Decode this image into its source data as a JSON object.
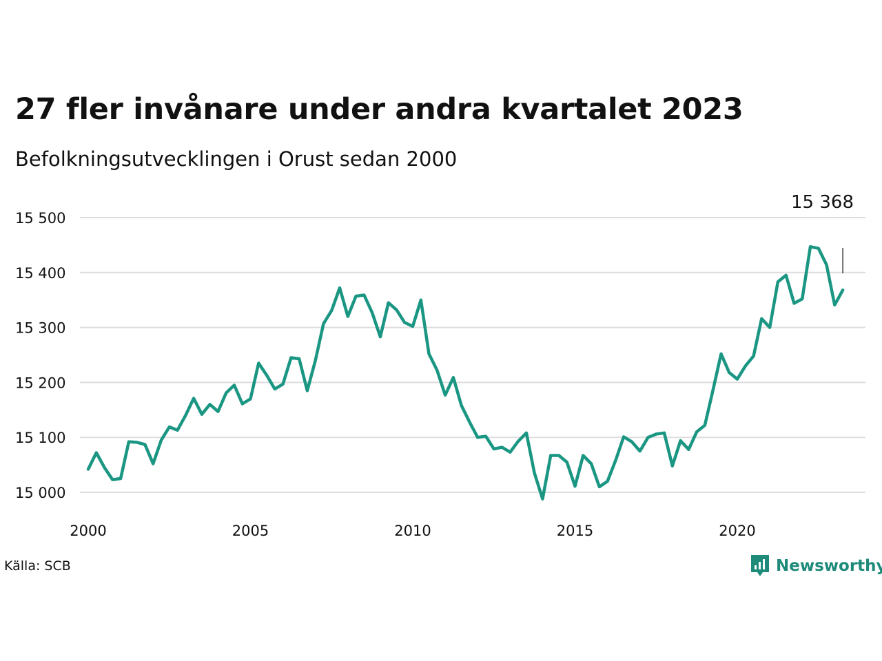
{
  "title": "27 fler invånare under andra kvartalet 2023",
  "subtitle": "Befolkningsutvecklingen i Orust sedan 2000",
  "source": "Källa: SCB",
  "brand": {
    "name": "Newsworthy",
    "icon": "newsworthy-logo-icon"
  },
  "colors": {
    "line": "#1a9683",
    "grid": "#dddddd",
    "brand": "#1d8a7a"
  },
  "chart_data": {
    "type": "line",
    "title": "27 fler invånare under andra kvartalet 2023",
    "subtitle": "Befolkningsutvecklingen i Orust sedan 2000",
    "xlabel": "",
    "ylabel": "",
    "xlim": [
      2000,
      2024
    ],
    "ylim": [
      15000,
      15500
    ],
    "x_ticks": [
      2000,
      2005,
      2010,
      2015,
      2020
    ],
    "x_tick_labels": [
      "2000",
      "2005",
      "2010",
      "2015",
      "2020"
    ],
    "y_ticks": [
      15000,
      15100,
      15200,
      15300,
      15400,
      15500
    ],
    "y_tick_labels": [
      "15 000",
      "15 100",
      "15 200",
      "15 300",
      "15 400",
      "15 500"
    ],
    "grid": "horizontal",
    "annotation": {
      "text": "15 368",
      "x": 2023.25,
      "y": 15368
    },
    "series": [
      {
        "x": [
          2000.0,
          2000.25,
          2000.5,
          2000.75,
          2001.0,
          2001.25,
          2001.5,
          2001.75,
          2002.0,
          2002.25,
          2002.5,
          2002.75,
          2003.0,
          2003.25,
          2003.5,
          2003.75,
          2004.0,
          2004.25,
          2004.5,
          2004.75,
          2005.0,
          2005.25,
          2005.5,
          2005.75,
          2006.0,
          2006.25,
          2006.5,
          2006.75,
          2007.0,
          2007.25,
          2007.5,
          2007.75,
          2008.0,
          2008.25,
          2008.5,
          2008.75,
          2009.0,
          2009.25,
          2009.5,
          2009.75,
          2010.0,
          2010.25,
          2010.5,
          2010.75,
          2011.0,
          2011.25,
          2011.5,
          2011.75,
          2012.0,
          2012.25,
          2012.5,
          2012.75,
          2013.0,
          2013.25,
          2013.5,
          2013.75,
          2014.0,
          2014.25,
          2014.5,
          2014.75,
          2015.0,
          2015.25,
          2015.5,
          2015.75,
          2016.0,
          2016.25,
          2016.5,
          2016.75,
          2017.0,
          2017.25,
          2017.5,
          2017.75,
          2018.0,
          2018.25,
          2018.5,
          2018.75,
          2019.0,
          2019.25,
          2019.5,
          2019.75,
          2020.0,
          2020.25,
          2020.5,
          2020.75,
          2021.0,
          2021.25,
          2021.5,
          2021.75,
          2022.0,
          2022.25,
          2022.5,
          2022.75,
          2023.0,
          2023.25
        ],
        "values": [
          15042,
          15072,
          15045,
          15023,
          15025,
          15092,
          15091,
          15087,
          15052,
          15095,
          15119,
          15113,
          15140,
          15171,
          15142,
          15160,
          15147,
          15181,
          15195,
          15161,
          15170,
          15235,
          15213,
          15188,
          15197,
          15245,
          15243,
          15185,
          15240,
          15307,
          15331,
          15372,
          15320,
          15357,
          15359,
          15327,
          15283,
          15345,
          15332,
          15309,
          15302,
          15350,
          15252,
          15222,
          15177,
          15209,
          15158,
          15128,
          15100,
          15102,
          15079,
          15082,
          15073,
          15093,
          15108,
          15035,
          14988,
          15067,
          15067,
          15055,
          15011,
          15067,
          15052,
          15010,
          15020,
          15058,
          15101,
          15092,
          15075,
          15100,
          15106,
          15108,
          15048,
          15094,
          15078,
          15110,
          15122,
          15186,
          15252,
          15218,
          15206,
          15230,
          15248,
          15316,
          15300,
          15383,
          15395,
          15344,
          15352,
          15447,
          15444,
          15414,
          15341,
          15368
        ]
      }
    ]
  }
}
